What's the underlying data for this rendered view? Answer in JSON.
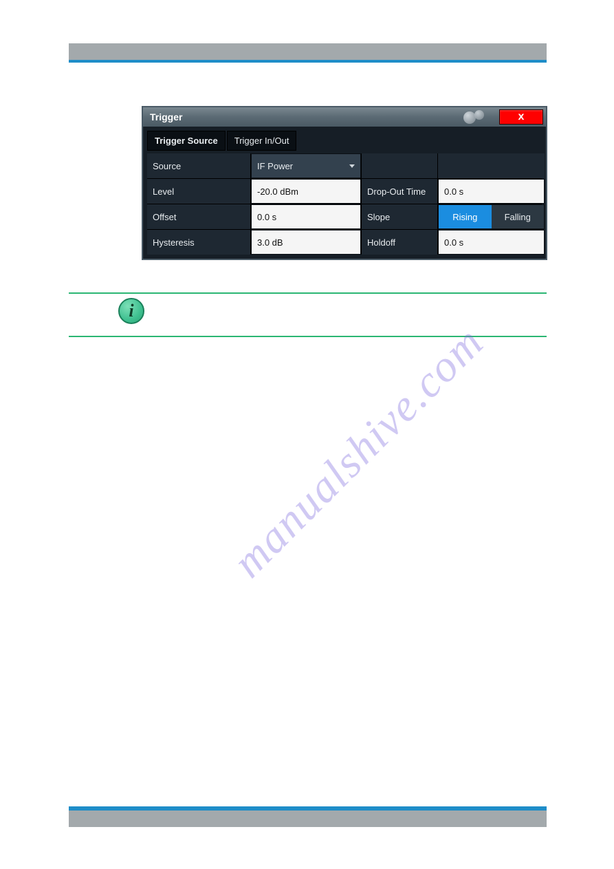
{
  "page": {
    "top_bar_color": "#a3a9ac",
    "accent_color": "#1e8dc8",
    "green_line_color": "#2bb673",
    "watermark_text": "manualshive.com",
    "watermark_color": "rgba(120,100,220,0.35)"
  },
  "dialog": {
    "title": "Trigger",
    "close_label": "x",
    "tabs": {
      "active": "Trigger Source",
      "inactive": "Trigger In/Out"
    },
    "fields": {
      "source": {
        "label": "Source",
        "value": "IF Power"
      },
      "level": {
        "label": "Level",
        "value": "-20.0 dBm"
      },
      "dropout": {
        "label": "Drop-Out Time",
        "value": "0.0 s"
      },
      "offset": {
        "label": "Offset",
        "value": "0.0 s"
      },
      "slope": {
        "label": "Slope",
        "options": {
          "active": "Rising",
          "inactive": "Falling"
        }
      },
      "hysteresis": {
        "label": "Hysteresis",
        "value": "3.0 dB"
      },
      "holdoff": {
        "label": "Holdoff",
        "value": "0.0 s"
      }
    },
    "colors": {
      "titlebar_gradient": [
        "#7a8890",
        "#4a5a64"
      ],
      "body_bg": "#161e26",
      "cell_bg": "#1e2832",
      "input_bg": "#f5f5f5",
      "select_bg": "#33414e",
      "toggle_active_bg": "#1b8de0",
      "toggle_inactive_bg": "#2c3842",
      "close_bg": "#ff0000"
    }
  },
  "info_icon": {
    "glyph": "i",
    "fill": "#3fc090",
    "border": "#1a805a"
  }
}
